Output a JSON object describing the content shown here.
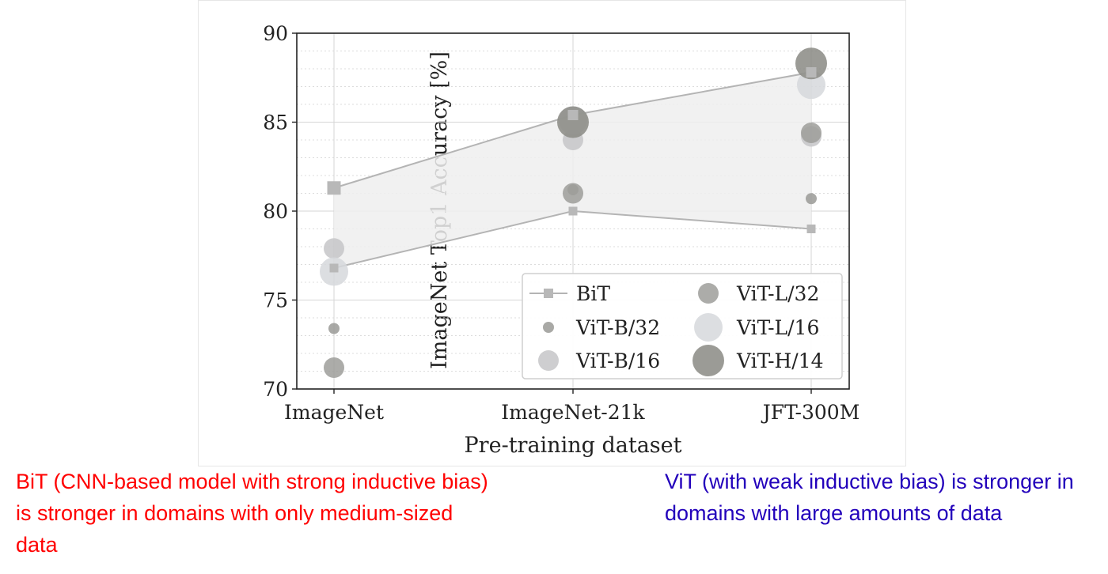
{
  "chart_data": {
    "type": "scatter",
    "title": "",
    "xlabel": "Pre-training dataset",
    "ylabel": "ImageNet Top1 Accuracy [%]",
    "categories": [
      "ImageNet",
      "ImageNet-21k",
      "JFT-300M"
    ],
    "ylim": [
      70,
      90
    ],
    "yticks": [
      70,
      75,
      80,
      85,
      90
    ],
    "grid": true,
    "legend_position": "lower-right",
    "bit_band": {
      "name": "BiT",
      "upper": [
        81.3,
        85.4,
        87.8
      ],
      "lower": [
        76.8,
        80.0,
        79.0
      ]
    },
    "series": [
      {
        "name": "ViT-B/32",
        "values": [
          73.4,
          81.2,
          80.7
        ],
        "color": "#9a9a96"
      },
      {
        "name": "ViT-B/16",
        "values": [
          77.9,
          84.0,
          84.2
        ],
        "color": "#c6c6c8"
      },
      {
        "name": "ViT-L/32",
        "values": [
          71.2,
          81.0,
          84.4
        ],
        "color": "#9e9e9a"
      },
      {
        "name": "ViT-L/16",
        "values": [
          76.6,
          85.1,
          87.1
        ],
        "color": "#d6d8dc"
      },
      {
        "name": "ViT-H/14",
        "values": [
          null,
          85.0,
          88.3
        ],
        "color": "#8a8a84"
      }
    ],
    "legend_order": [
      "BiT",
      "ViT-B/32",
      "ViT-B/16",
      "ViT-L/32",
      "ViT-L/16",
      "ViT-H/14"
    ]
  },
  "captions": {
    "left": "BiT (CNN-based model with strong inductive bias) is stronger in domains with only medium-sized data",
    "left_color": "#ff0000",
    "right": "ViT (with weak inductive bias) is stronger in domains with large amounts of data",
    "right_color": "#2200bb"
  }
}
